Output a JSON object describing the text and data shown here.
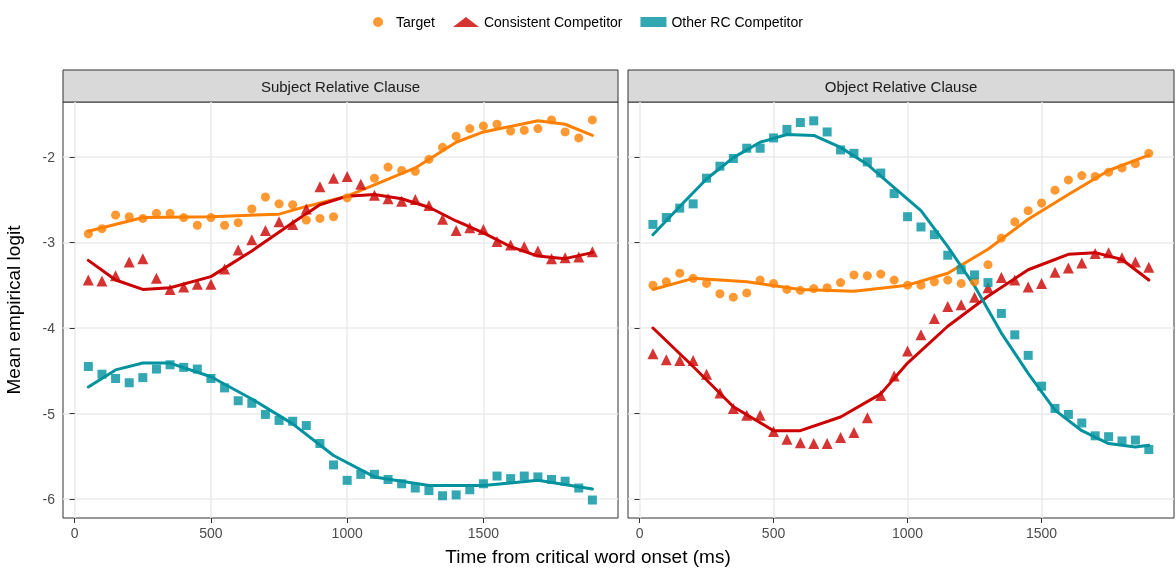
{
  "chart_data": [
    {
      "type": "scatter",
      "title": "Subject Relative Clause",
      "xlabel": "Time from critical word onset (ms)",
      "ylabel": "Mean empirical logit",
      "legend": "top",
      "grid": true,
      "xlim": [
        -43,
        1994
      ],
      "xticks": [
        0,
        500,
        1000,
        1500
      ],
      "ylim": [
        -6.22,
        -1.36
      ],
      "yticks": [
        -6,
        -5,
        -4,
        -3,
        -2
      ],
      "x": [
        50,
        100,
        150,
        200,
        250,
        300,
        350,
        400,
        450,
        500,
        550,
        600,
        650,
        700,
        750,
        800,
        850,
        900,
        950,
        1000,
        1050,
        1100,
        1150,
        1200,
        1250,
        1300,
        1350,
        1400,
        1450,
        1500,
        1550,
        1600,
        1650,
        1700,
        1750,
        1800,
        1850,
        1900
      ],
      "series": [
        {
          "name": "Target",
          "type": "scatter",
          "marker": "circle",
          "color": "#ff7f00",
          "values": [
            -2.9,
            -2.84,
            -2.68,
            -2.7,
            -2.72,
            -2.66,
            -2.66,
            -2.71,
            -2.8,
            -2.71,
            -2.8,
            -2.77,
            -2.61,
            -2.47,
            -2.55,
            -2.56,
            -2.74,
            -2.72,
            -2.7,
            -2.48,
            null,
            -2.25,
            -2.12,
            -2.16,
            -2.17,
            -2.03,
            -1.89,
            -1.76,
            -1.67,
            -1.64,
            -1.62,
            -1.7,
            -1.69,
            -1.67,
            -1.57,
            -1.71,
            -1.78,
            -1.57
          ]
        },
        {
          "name": "Consistent Competitor",
          "type": "scatter",
          "marker": "triangle",
          "color": "#cc0000",
          "values": [
            -3.44,
            -3.45,
            -3.39,
            -3.23,
            -3.19,
            -3.42,
            -3.55,
            -3.52,
            -3.49,
            -3.49,
            -3.31,
            -3.09,
            -2.97,
            -2.86,
            -2.76,
            -2.79,
            -2.61,
            -2.35,
            -2.25,
            -2.23,
            -2.32,
            -2.45,
            -2.49,
            -2.52,
            -2.5,
            -2.57,
            -2.73,
            -2.86,
            -2.83,
            -2.85,
            -2.99,
            -3.03,
            -3.05,
            -3.1,
            -3.19,
            -3.18,
            -3.17,
            -3.11
          ]
        },
        {
          "name": "Other RC Competitor",
          "type": "scatter",
          "marker": "square",
          "color": "#00929f",
          "values": [
            -4.45,
            -4.54,
            -4.59,
            -4.64,
            -4.58,
            -4.48,
            -4.43,
            -4.46,
            -4.48,
            -4.59,
            -4.7,
            -4.85,
            -4.88,
            -5.01,
            -5.08,
            -5.09,
            -5.14,
            -5.35,
            -5.6,
            -5.78,
            -5.71,
            -5.71,
            -5.77,
            -5.82,
            -5.87,
            -5.9,
            -5.96,
            -5.95,
            -5.89,
            -5.82,
            -5.73,
            -5.76,
            -5.73,
            -5.74,
            -5.77,
            -5.79,
            -5.87,
            -6.01
          ]
        },
        {
          "type": "line",
          "marker": "none",
          "color": "#ff7f00",
          "x": [
            50,
            250,
            500,
            750,
            850,
            1000,
            1250,
            1400,
            1500,
            1700,
            1800,
            1900
          ],
          "values": [
            -2.87,
            -2.71,
            -2.7,
            -2.67,
            -2.58,
            -2.46,
            -2.13,
            -1.83,
            -1.71,
            -1.58,
            -1.62,
            -1.75
          ]
        },
        {
          "type": "line",
          "marker": "none",
          "color": "#cc0000",
          "x": [
            50,
            150,
            250,
            350,
            500,
            650,
            800,
            900,
            1000,
            1100,
            1200,
            1300,
            1400,
            1500,
            1600,
            1700,
            1800,
            1900
          ],
          "values": [
            -3.21,
            -3.44,
            -3.55,
            -3.53,
            -3.4,
            -3.1,
            -2.77,
            -2.56,
            -2.46,
            -2.44,
            -2.49,
            -2.59,
            -2.75,
            -2.89,
            -3.05,
            -3.16,
            -3.19,
            -3.12
          ]
        },
        {
          "type": "line",
          "marker": "none",
          "color": "#00929f",
          "x": [
            50,
            150,
            250,
            350,
            500,
            650,
            800,
            950,
            1100,
            1300,
            1500,
            1700,
            1900
          ],
          "values": [
            -4.69,
            -4.49,
            -4.41,
            -4.41,
            -4.57,
            -4.83,
            -5.12,
            -5.49,
            -5.74,
            -5.84,
            -5.84,
            -5.78,
            -5.88
          ]
        }
      ]
    },
    {
      "type": "scatter",
      "title": "Object Relative Clause",
      "grid": true,
      "tick_labels": "x",
      "xlim": [
        -43,
        1994
      ],
      "xticks": [
        0,
        500,
        1000,
        1500
      ],
      "ylim": [
        -6.22,
        -1.36
      ],
      "yticks": [
        -6,
        -5,
        -4,
        -3,
        -2
      ],
      "x": [
        50,
        100,
        150,
        200,
        250,
        300,
        350,
        400,
        450,
        500,
        550,
        600,
        650,
        700,
        750,
        800,
        850,
        900,
        950,
        1000,
        1050,
        1100,
        1150,
        1200,
        1250,
        1300,
        1350,
        1400,
        1450,
        1500,
        1550,
        1600,
        1650,
        1700,
        1750,
        1800,
        1850,
        1900
      ],
      "series": [
        {
          "type": "scatter",
          "marker": "circle",
          "color": "#ff7f00",
          "values": [
            -3.5,
            -3.46,
            -3.36,
            -3.42,
            -3.48,
            -3.6,
            -3.64,
            -3.59,
            -3.44,
            -3.48,
            -3.55,
            -3.56,
            -3.54,
            -3.53,
            -3.47,
            -3.38,
            -3.39,
            -3.37,
            -3.44,
            -3.5,
            -3.5,
            -3.46,
            -3.44,
            -3.48,
            -3.46,
            -3.26,
            -2.95,
            -2.76,
            -2.63,
            -2.54,
            -2.39,
            -2.27,
            -2.22,
            -2.23,
            -2.18,
            -2.13,
            -2.08,
            -1.96
          ]
        },
        {
          "type": "scatter",
          "marker": "triangle",
          "color": "#cc0000",
          "values": [
            -4.3,
            -4.37,
            -4.38,
            -4.38,
            -4.54,
            -4.76,
            -4.94,
            -5.02,
            -5.02,
            -5.21,
            -5.3,
            -5.34,
            -5.35,
            -5.35,
            -5.28,
            -5.22,
            -5.05,
            -4.79,
            -4.56,
            -4.27,
            -4.08,
            -3.89,
            -3.75,
            -3.73,
            -3.64,
            -3.53,
            -3.41,
            -3.44,
            -3.52,
            -3.48,
            -3.35,
            -3.3,
            -3.24,
            -3.13,
            -3.12,
            -3.18,
            -3.23,
            -3.29
          ]
        },
        {
          "type": "scatter",
          "marker": "square",
          "color": "#00929f",
          "values": [
            -2.79,
            -2.71,
            -2.6,
            -2.55,
            -2.25,
            -2.11,
            -2.02,
            -1.9,
            -1.9,
            -1.78,
            -1.68,
            -1.6,
            -1.58,
            -1.71,
            -1.92,
            -1.96,
            -2.06,
            -2.19,
            -2.43,
            -2.7,
            -2.82,
            -2.91,
            -3.15,
            -3.32,
            -3.38,
            -3.47,
            -3.83,
            -4.08,
            -4.32,
            -4.68,
            -4.94,
            -5.01,
            -5.11,
            -5.26,
            -5.27,
            -5.32,
            -5.31,
            -5.42
          ]
        },
        {
          "type": "line",
          "marker": "none",
          "color": "#ff7f00",
          "x": [
            50,
            200,
            400,
            600,
            800,
            1000,
            1150,
            1300,
            1450,
            1600,
            1750,
            1900
          ],
          "values": [
            -3.55,
            -3.42,
            -3.46,
            -3.55,
            -3.57,
            -3.5,
            -3.36,
            -3.08,
            -2.73,
            -2.44,
            -2.16,
            -1.98
          ]
        },
        {
          "type": "line",
          "marker": "none",
          "color": "#cc0000",
          "x": [
            50,
            200,
            350,
            500,
            600,
            750,
            900,
            1000,
            1150,
            1300,
            1450,
            1600,
            1700,
            1800,
            1900
          ],
          "values": [
            -4.0,
            -4.45,
            -4.92,
            -5.2,
            -5.2,
            -5.04,
            -4.77,
            -4.41,
            -3.98,
            -3.63,
            -3.32,
            -3.14,
            -3.12,
            -3.2,
            -3.44
          ]
        },
        {
          "type": "line",
          "marker": "none",
          "color": "#00929f",
          "x": [
            50,
            150,
            250,
            350,
            450,
            550,
            650,
            750,
            850,
            950,
            1050,
            1150,
            1250,
            1350,
            1450,
            1550,
            1650,
            1750,
            1850,
            1900
          ],
          "values": [
            -2.91,
            -2.58,
            -2.26,
            -2.01,
            -1.83,
            -1.74,
            -1.75,
            -1.89,
            -2.09,
            -2.36,
            -2.63,
            -3.05,
            -3.51,
            -4.06,
            -4.53,
            -4.96,
            -5.2,
            -5.35,
            -5.39,
            -5.37
          ]
        }
      ]
    }
  ]
}
